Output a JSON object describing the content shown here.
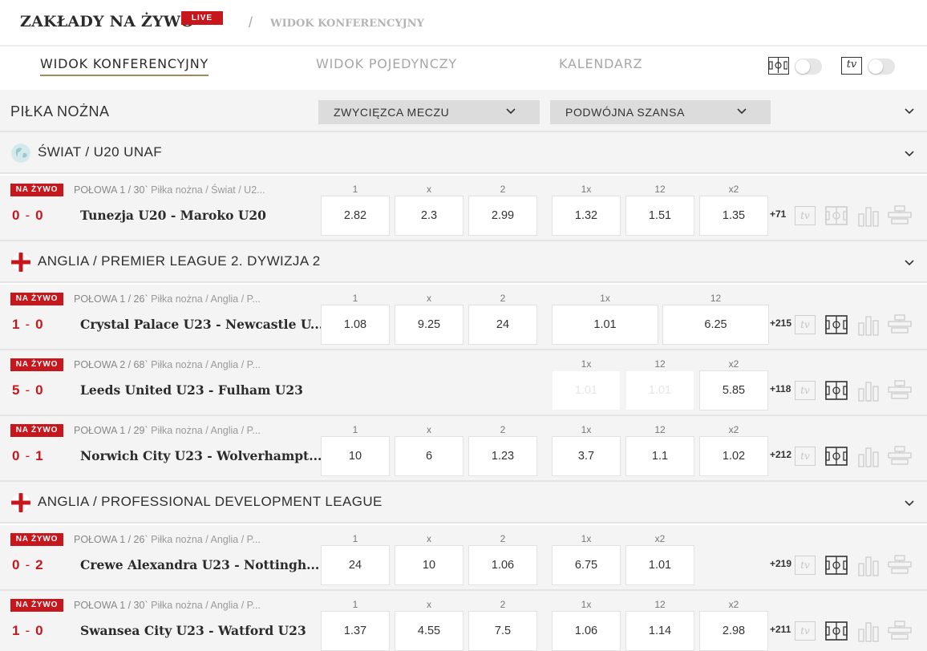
{
  "header": {
    "title": "ZAKŁADY NA ŻYWO",
    "live_badge": "LIVE",
    "separator": "/",
    "breadcrumb": "WIDOK KONFERENCYJNY"
  },
  "tabs": [
    {
      "label": "WIDOK KONFERENCYJNY",
      "active": true
    },
    {
      "label": "WIDOK POJEDYNCZY",
      "active": false
    },
    {
      "label": "KALENDARZ",
      "active": false
    }
  ],
  "view_toggles": {
    "pitch_icon": "pitch-icon",
    "tv_label": "tv",
    "pitch_on": false,
    "tv_on": false
  },
  "sport": {
    "name": "PIŁKA NOŻNA",
    "market1": "ZWYCIĘZCA MECZU",
    "market2": "PODWÓJNA SZANSA"
  },
  "leagues": [
    {
      "name": "ŚWIAT / U20 UNAF",
      "icon": "globe-icon",
      "matches": [
        {
          "badge": "NA ŻYWO",
          "period": "POŁOWA 1 / 30`",
          "path": [
            "Piłka nożna",
            "Świat",
            "U2..."
          ],
          "home_score": "0",
          "away_score": "0",
          "teams": "Tunezja U20 - Maroko U20",
          "odds_labels": [
            "1",
            "x",
            "2",
            "1x",
            "12",
            "x2"
          ],
          "odds": [
            "2.82",
            "2.3",
            "2.99",
            "1.32",
            "1.51",
            "1.35"
          ],
          "more": "+71",
          "pitch_active": false
        }
      ]
    },
    {
      "name": "ANGLIA / PREMIER LEAGUE 2. DYWIZJA 2",
      "icon": "england-flag-icon",
      "matches": [
        {
          "badge": "NA ŻYWO",
          "period": "POŁOWA 1 / 26`",
          "path": [
            "Piłka nożna",
            "Anglia",
            "P..."
          ],
          "home_score": "1",
          "away_score": "0",
          "teams": "Crystal Palace U23 - Newcastle U...",
          "odds_labels": [
            "1",
            "x",
            "2",
            "1x",
            "12"
          ],
          "odds": [
            "1.08",
            "9.25",
            "24",
            "1.01",
            "6.25"
          ],
          "more": "+215",
          "pitch_active": true
        },
        {
          "badge": "NA ŻYWO",
          "period": "POŁOWA 2 / 68`",
          "path": [
            "Piłka nożna",
            "Anglia",
            "P..."
          ],
          "home_score": "5",
          "away_score": "0",
          "teams": "Leeds United U23 - Fulham U23",
          "odds_labels": [
            "1x",
            "12",
            "x2"
          ],
          "odds": [
            "1.01",
            "1.01",
            "5.85"
          ],
          "more": "+118",
          "pitch_active": true
        },
        {
          "badge": "NA ŻYWO",
          "period": "POŁOWA 1 / 29`",
          "path": [
            "Piłka nożna",
            "Anglia",
            "P..."
          ],
          "home_score": "0",
          "away_score": "1",
          "teams": "Norwich City U23 - Wolverhampt...",
          "odds_labels": [
            "1",
            "x",
            "2",
            "1x",
            "12",
            "x2"
          ],
          "odds": [
            "10",
            "6",
            "1.23",
            "3.7",
            "1.1",
            "1.02"
          ],
          "more": "+212",
          "pitch_active": true
        }
      ]
    },
    {
      "name": "ANGLIA / PROFESSIONAL DEVELOPMENT LEAGUE",
      "icon": "england-flag-icon",
      "matches": [
        {
          "badge": "NA ŻYWO",
          "period": "POŁOWA 1 / 26`",
          "path": [
            "Piłka nożna",
            "Anglia",
            "P..."
          ],
          "home_score": "0",
          "away_score": "2",
          "teams": "Crewe Alexandra U23 - Nottingh...",
          "odds_labels": [
            "1",
            "x",
            "2",
            "1x",
            "x2"
          ],
          "odds": [
            "24",
            "10",
            "1.06",
            "6.75",
            "1.01"
          ],
          "more": "+219",
          "pitch_active": true
        },
        {
          "badge": "NA ŻYWO",
          "period": "POŁOWA 1 / 30`",
          "path": [
            "Piłka nożna",
            "Anglia",
            "P..."
          ],
          "home_score": "1",
          "away_score": "0",
          "teams": "Swansea City U23 - Watford U23",
          "odds_labels": [
            "1",
            "x",
            "2",
            "1x",
            "12",
            "x2"
          ],
          "odds": [
            "1.37",
            "4.55",
            "7.5",
            "1.06",
            "1.14",
            "2.98"
          ],
          "more": "+211",
          "pitch_active": true
        }
      ]
    }
  ],
  "icons": {
    "tv": "tv-icon",
    "pitch": "pitch-icon",
    "stats": "stats-icon",
    "lineup": "lineup-icon",
    "chevron": "chevron-down-icon"
  },
  "colors": {
    "accent_red": "#c8161d",
    "row_bg": "#f5f4f4",
    "tab_underline": "#a08a5a"
  }
}
